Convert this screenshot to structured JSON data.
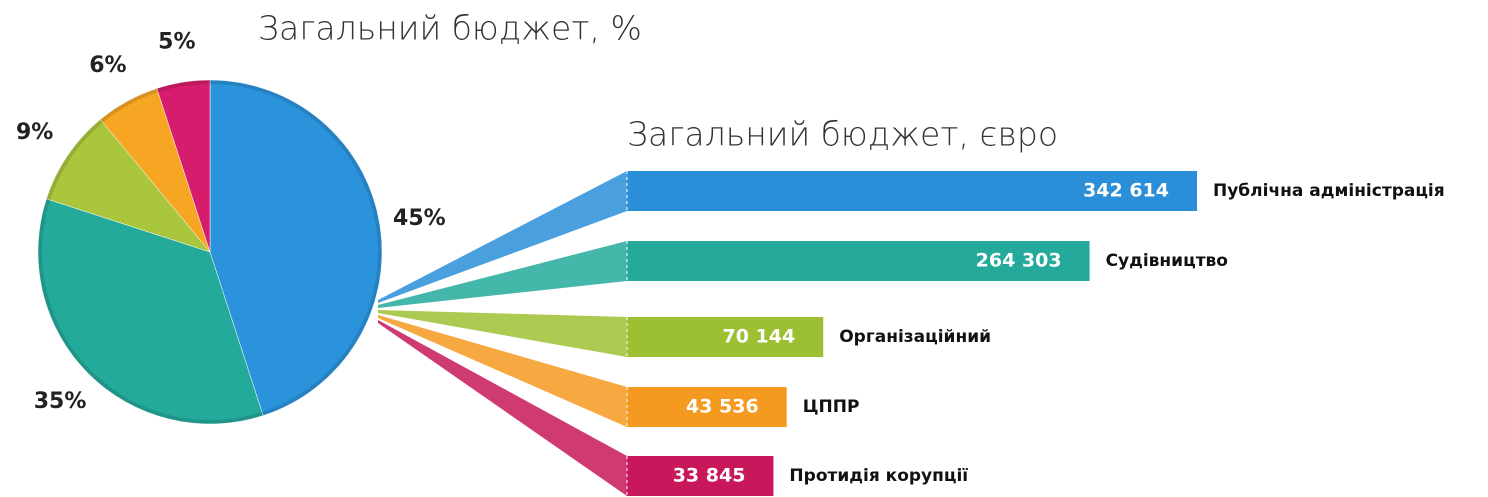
{
  "chart_data": [
    {
      "type": "pie",
      "title": "Загальний бюджет, %",
      "values": [
        45,
        35,
        9,
        6,
        5
      ],
      "value_labels": [
        "45%",
        "35%",
        "9%",
        "6%",
        "5%"
      ],
      "colors": [
        "#2b93dc",
        "#23aa9b",
        "#a9c63c",
        "#f6a623",
        "#d61c6c"
      ]
    },
    {
      "type": "hbar",
      "title": "Загальний бюджет, євро",
      "categories": [
        "Публічна адміністрація",
        "Судівництво",
        "Організаційний",
        "ЦППР",
        "Протидія корупції"
      ],
      "values": [
        342614,
        264303,
        70144,
        43536,
        33845
      ],
      "value_labels": [
        "342 614",
        "264 303",
        "70 144",
        "43 536",
        "33 845"
      ],
      "colors": [
        "#2a8fd8",
        "#25a99b",
        "#9dbf32",
        "#f59a20",
        "#c8175a"
      ]
    }
  ]
}
